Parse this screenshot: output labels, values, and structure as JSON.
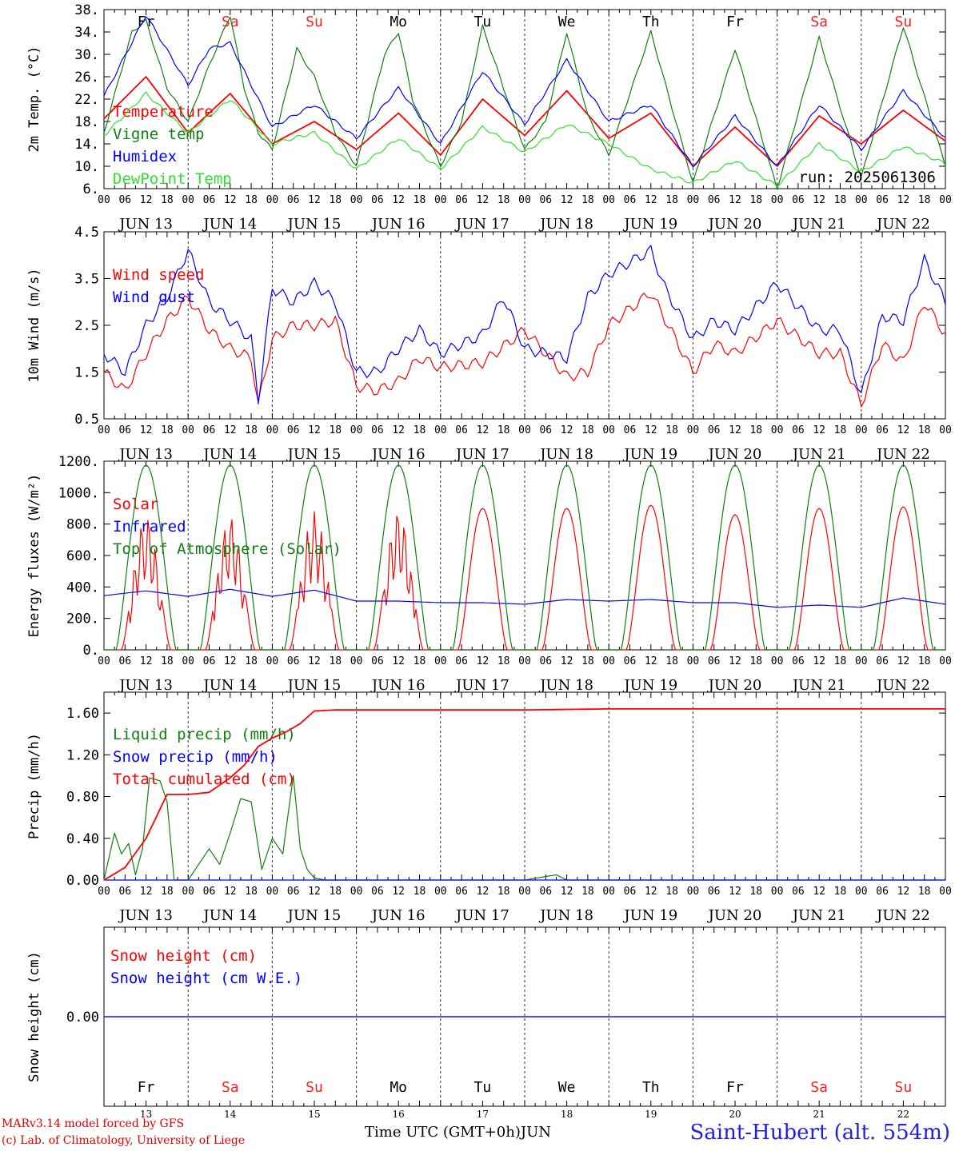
{
  "colors": {
    "red": "#ff0000",
    "green": "#108010",
    "blue": "#0000ff",
    "lightgreen": "#30e030",
    "weekday": "#000000",
    "weekend": "#ff2020"
  },
  "days": [
    {
      "date": "13",
      "month": "JUN 13",
      "wd": "Fr",
      "weekend": false
    },
    {
      "date": "14",
      "month": "JUN 14",
      "wd": "Sa",
      "weekend": true
    },
    {
      "date": "15",
      "month": "JUN 15",
      "wd": "Su",
      "weekend": true
    },
    {
      "date": "16",
      "month": "JUN 16",
      "wd": "Mo",
      "weekend": false
    },
    {
      "date": "17",
      "month": "JUN 17",
      "wd": "Tu",
      "weekend": false
    },
    {
      "date": "18",
      "month": "JUN 18",
      "wd": "We",
      "weekend": false
    },
    {
      "date": "19",
      "month": "JUN 19",
      "wd": "Th",
      "weekend": false
    },
    {
      "date": "20",
      "month": "JUN 20",
      "wd": "Fr",
      "weekend": false
    },
    {
      "date": "21",
      "month": "JUN 21",
      "wd": "Sa",
      "weekend": true
    },
    {
      "date": "22",
      "month": "JUN 22",
      "wd": "Su",
      "weekend": true
    }
  ],
  "hour_ticks": [
    "00",
    "06",
    "12",
    "18"
  ],
  "chart_data": [
    {
      "type": "line",
      "ylabel": "2m Temp. (°C)",
      "ylim": [
        6,
        38
      ],
      "ytick_values": [
        6,
        10,
        14,
        18,
        22,
        26,
        30,
        34,
        38
      ],
      "ytick_labels": [
        "6.",
        "10.",
        "14.",
        "18.",
        "22.",
        "26.",
        "30.",
        "34.",
        "38."
      ],
      "annotation": "run: 2025061306",
      "weekday_labels_on_top": true,
      "series": [
        {
          "name": "Temperature",
          "color": "red",
          "x": [
            0,
            12,
            24,
            36,
            48,
            60,
            72,
            84,
            96,
            108,
            120,
            132,
            144,
            156,
            168,
            180,
            192,
            204,
            216,
            228,
            240
          ],
          "values": [
            18.5,
            26,
            16,
            23,
            14,
            18,
            13,
            19.5,
            12,
            22,
            15.5,
            23.5,
            15,
            19.5,
            10,
            17,
            10,
            19,
            14,
            20,
            14.5
          ]
        },
        {
          "name": "Vigne temp",
          "color": "green",
          "x": [
            0,
            8,
            12,
            18,
            24,
            30,
            36,
            40,
            44,
            48,
            55,
            60,
            66,
            72,
            80,
            84,
            88,
            96,
            102,
            108,
            120,
            126,
            132,
            138,
            144,
            156,
            168,
            180,
            192,
            204,
            216,
            228,
            240
          ],
          "values": [
            16,
            34,
            36,
            24,
            18,
            28,
            37,
            24,
            16,
            13,
            31,
            26,
            16,
            10,
            30,
            34,
            22,
            10,
            18,
            35,
            13,
            18,
            34,
            19,
            12,
            34,
            7,
            31,
            6,
            33,
            8,
            35,
            10
          ]
        },
        {
          "name": "Humidex",
          "color": "blue",
          "x": [
            0,
            12,
            24,
            30,
            36,
            48,
            60,
            72,
            84,
            96,
            108,
            120,
            132,
            144,
            156,
            168,
            180,
            192,
            204,
            216,
            228,
            240
          ],
          "values": [
            22.5,
            37,
            24.5,
            31,
            32,
            17,
            21,
            15,
            24,
            14,
            27,
            17.5,
            29,
            18,
            21,
            10,
            19,
            10,
            21,
            13,
            23.5,
            15
          ]
        },
        {
          "name": "DewPoint Temp",
          "color": "lightgreen",
          "x": [
            0,
            12,
            24,
            36,
            48,
            60,
            72,
            84,
            96,
            108,
            120,
            132,
            144,
            156,
            168,
            180,
            192,
            204,
            216,
            228,
            240
          ],
          "values": [
            15.5,
            23,
            16,
            22,
            14,
            16,
            9.5,
            15,
            9.5,
            17,
            12.5,
            17.5,
            14,
            9.5,
            7,
            11,
            6.5,
            14,
            9,
            13.5,
            10.5
          ]
        }
      ]
    },
    {
      "type": "line",
      "ylabel": "10m Wind (m/s)",
      "ylim": [
        0.5,
        4.5
      ],
      "ytick_values": [
        0.5,
        1.5,
        2.5,
        3.5,
        4.5
      ],
      "ytick_labels": [
        "0.5",
        "1.5",
        "2.5",
        "3.5",
        "4.5"
      ],
      "series": [
        {
          "name": "Wind speed",
          "color": "red",
          "x": [
            0,
            6,
            12,
            18,
            24,
            30,
            36,
            42,
            44,
            48,
            54,
            60,
            66,
            72,
            78,
            84,
            90,
            96,
            108,
            120,
            132,
            138,
            144,
            156,
            168,
            174,
            180,
            192,
            204,
            210,
            216,
            222,
            228,
            234,
            240
          ],
          "values": [
            1.5,
            1.1,
            1.9,
            2.6,
            3.1,
            2.4,
            2.0,
            1.8,
            0.8,
            2.2,
            2.5,
            2.5,
            2.6,
            1.2,
            1.1,
            1.3,
            1.8,
            1.6,
            1.7,
            2.4,
            1.4,
            1.5,
            2.5,
            3.2,
            1.5,
            2.1,
            1.9,
            2.6,
            1.9,
            1.9,
            0.8,
            2.1,
            1.7,
            3.0,
            2.3
          ]
        },
        {
          "name": "Wind gust",
          "color": "blue",
          "x": [
            0,
            6,
            12,
            18,
            24,
            30,
            36,
            42,
            44,
            48,
            54,
            60,
            66,
            72,
            78,
            84,
            90,
            96,
            108,
            114,
            120,
            132,
            138,
            144,
            156,
            160,
            168,
            174,
            180,
            192,
            204,
            210,
            216,
            222,
            228,
            234,
            240
          ],
          "values": [
            1.9,
            1.5,
            2.5,
            3.1,
            4.1,
            3.0,
            2.6,
            2.2,
            0.9,
            3.3,
            3.0,
            3.4,
            3.0,
            1.5,
            1.5,
            2.0,
            2.4,
            1.9,
            2.3,
            3.1,
            2.0,
            1.8,
            3.1,
            3.6,
            4.1,
            3.3,
            2.2,
            2.6,
            2.4,
            3.4,
            2.4,
            2.4,
            1.0,
            2.7,
            2.6,
            3.9,
            3.0
          ]
        }
      ]
    },
    {
      "type": "line",
      "ylabel": "Energy fluxes (W/m²)",
      "ylim": [
        0,
        1200
      ],
      "ytick_values": [
        0,
        200,
        400,
        600,
        800,
        1000,
        1200
      ],
      "ytick_labels": [
        "0.",
        "200.",
        "400.",
        "600.",
        "800.",
        "1000.",
        "1200."
      ],
      "series": [
        {
          "name": "Solar",
          "color": "red",
          "daily_peaks": [
            860,
            860,
            880,
            900,
            900,
            900,
            920,
            860,
            900,
            910
          ]
        },
        {
          "name": "Infrared",
          "color": "blue",
          "x": [
            0,
            12,
            24,
            36,
            48,
            60,
            72,
            84,
            96,
            108,
            120,
            132,
            144,
            156,
            168,
            180,
            192,
            204,
            216,
            228,
            240
          ],
          "values": [
            345,
            375,
            340,
            385,
            340,
            380,
            310,
            310,
            300,
            300,
            290,
            320,
            310,
            320,
            300,
            300,
            270,
            285,
            270,
            330,
            290
          ]
        },
        {
          "name": "Top of Atmosphere (Solar)",
          "color": "green",
          "daily_peak": 1175
        }
      ]
    },
    {
      "type": "line",
      "ylabel": "Precip (mm/h)",
      "ylim": [
        0,
        1.8
      ],
      "ytick_values": [
        0.0,
        0.4,
        0.8,
        1.2,
        1.6
      ],
      "ytick_labels": [
        "0.00",
        "0.40",
        "0.80",
        "1.20",
        "1.60"
      ],
      "series": [
        {
          "name": "Liquid precip (mm/h)",
          "color": "green",
          "x": [
            0,
            3,
            5,
            7,
            9,
            11,
            13,
            16,
            18,
            20,
            24,
            30,
            33,
            36,
            39,
            42,
            45,
            48,
            51,
            54,
            56,
            58,
            60,
            63,
            66,
            78,
            120,
            129,
            132,
            240
          ],
          "values": [
            0,
            0.45,
            0.25,
            0.35,
            0.05,
            0.3,
            0.98,
            0.95,
            0.75,
            0,
            0,
            0.3,
            0.15,
            0.45,
            0.78,
            0.75,
            0.1,
            0.4,
            0.25,
            1.0,
            0.3,
            0.1,
            0.02,
            0,
            0,
            0,
            0,
            0.05,
            0,
            0
          ]
        },
        {
          "name": "Snow precip (mm/h)",
          "color": "blue",
          "x": [
            0,
            240
          ],
          "values": [
            0,
            0
          ]
        },
        {
          "name": "Total cumulated (cm)",
          "color": "red",
          "x": [
            0,
            6,
            12,
            18,
            24,
            30,
            36,
            40,
            44,
            48,
            52,
            56,
            60,
            66,
            78,
            120,
            144,
            240
          ],
          "values": [
            0,
            0.12,
            0.4,
            0.82,
            0.82,
            0.84,
            0.98,
            1.1,
            1.28,
            1.36,
            1.42,
            1.5,
            1.62,
            1.63,
            1.63,
            1.63,
            1.64,
            1.64
          ]
        }
      ]
    },
    {
      "type": "line",
      "ylabel": "Snow height (cm)",
      "ylim": [
        -1,
        1
      ],
      "ytick_values": [
        0
      ],
      "ytick_labels": [
        "0.00"
      ],
      "weekday_labels_at_bottom": true,
      "series": [
        {
          "name": "Snow height (cm)",
          "color": "red",
          "x": [
            0,
            240
          ],
          "values": [
            0,
            0
          ]
        },
        {
          "name": "Snow height (cm W.E.)",
          "color": "blue",
          "x": [
            0,
            240
          ],
          "values": [
            0,
            0
          ]
        }
      ]
    }
  ],
  "footer": {
    "credit_line1": "MARv3.14 model forced by GFS",
    "credit_line2": "(c) Lab. of Climatology, University of Liege",
    "x_title": "Time UTC (GMT+0h)",
    "month": "JUN",
    "station": "Saint-Hubert (alt. 554m)"
  }
}
